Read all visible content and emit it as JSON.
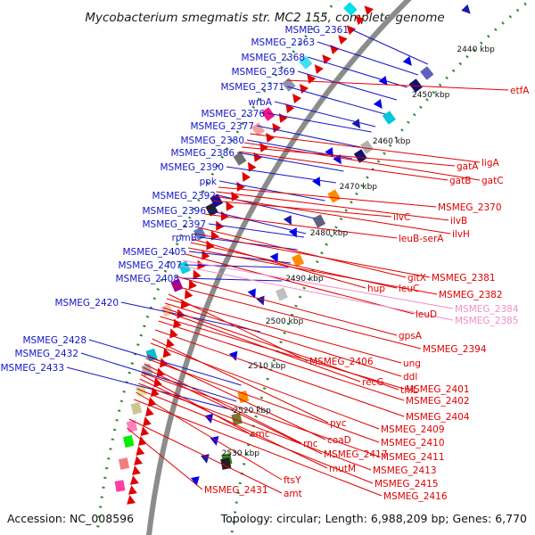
{
  "title": "Mycobacterium smegmatis str. MC2 155, complete genome",
  "accession_text": "Accession: NC_008596",
  "summary_text": "Topology: circular; Length: 6,988,209 bp; Genes: 6,770",
  "colors": {
    "backbone": "#8c8c8c",
    "minus_label": "#1515c8",
    "plus_label": "#e00000",
    "faded_label": "#f090c8",
    "tick_dots": "#2e8b2e"
  },
  "scale_ticks": [
    {
      "label": "2440 kbp"
    },
    {
      "label": "2450 kbp"
    },
    {
      "label": "2460 kbp"
    },
    {
      "label": "2470 kbp"
    },
    {
      "label": "2480 kbp"
    },
    {
      "label": "2490 kbp"
    },
    {
      "label": "2500 kbp"
    },
    {
      "label": "2510 kbp"
    },
    {
      "label": "2520 kbp"
    },
    {
      "label": "2530 kbp"
    }
  ],
  "left_genes": [
    {
      "label": "MSMEG_2361"
    },
    {
      "label": "MSMEG_2363"
    },
    {
      "label": "MSMEG_2368"
    },
    {
      "label": "MSMEG_2369"
    },
    {
      "label": "MSMEG_2371"
    },
    {
      "label": "wrbA"
    },
    {
      "label": "MSMEG_2376"
    },
    {
      "label": "MSMEG_2377"
    },
    {
      "label": "MSMEG_2380"
    },
    {
      "label": "MSMEG_2386"
    },
    {
      "label": "MSMEG_2390"
    },
    {
      "label": "ppk"
    },
    {
      "label": "MSMEG_2392"
    },
    {
      "label": "MSMEG_2396"
    },
    {
      "label": "MSMEG_2397"
    },
    {
      "label": "rpmB"
    },
    {
      "label": "MSMEG_2405"
    },
    {
      "label": "MSMEG_2407"
    },
    {
      "label": "MSMEG_2408"
    },
    {
      "label": "MSMEG_2420"
    },
    {
      "label": "MSMEG_2428"
    },
    {
      "label": "MSMEG_2432"
    },
    {
      "label": "MSMEG_2433"
    }
  ],
  "right_genes": [
    {
      "label": "etfA"
    },
    {
      "label": "ligA"
    },
    {
      "label": "gatA"
    },
    {
      "label": "gatC"
    },
    {
      "label": "gatB"
    },
    {
      "label": "MSMEG_2370"
    },
    {
      "label": "ilvC"
    },
    {
      "label": "ilvB"
    },
    {
      "label": "ilvH"
    },
    {
      "label": "leuB-serA"
    },
    {
      "label": "gltX"
    },
    {
      "label": "MSMEG_2381"
    },
    {
      "label": "hup"
    },
    {
      "label": "leuC"
    },
    {
      "label": "MSMEG_2382"
    },
    {
      "label": "leuD"
    },
    {
      "label": "MSMEG_2384"
    },
    {
      "label": "MSMEG_2385"
    },
    {
      "label": "gpsA"
    },
    {
      "label": "MSMEG_2394"
    },
    {
      "label": "MSMEG_2406"
    },
    {
      "label": "ung"
    },
    {
      "label": "ddl"
    },
    {
      "label": "thiL"
    },
    {
      "label": "recG"
    },
    {
      "label": "MSMEG_2401"
    },
    {
      "label": "MSMEG_2402"
    },
    {
      "label": "MSMEG_2404"
    },
    {
      "label": "pyc"
    },
    {
      "label": "MSMEG_2409"
    },
    {
      "label": "smc"
    },
    {
      "label": "coaD"
    },
    {
      "label": "MSMEG_2410"
    },
    {
      "label": "rnc"
    },
    {
      "label": "MSMEG_2417"
    },
    {
      "label": "MSMEG_2411"
    },
    {
      "label": "mutM"
    },
    {
      "label": "MSMEG_2413"
    },
    {
      "label": "MSMEG_2415"
    },
    {
      "label": "ftsY"
    },
    {
      "label": "MSMEG_2416"
    },
    {
      "label": "MSMEG_2431"
    },
    {
      "label": "amt"
    }
  ]
}
